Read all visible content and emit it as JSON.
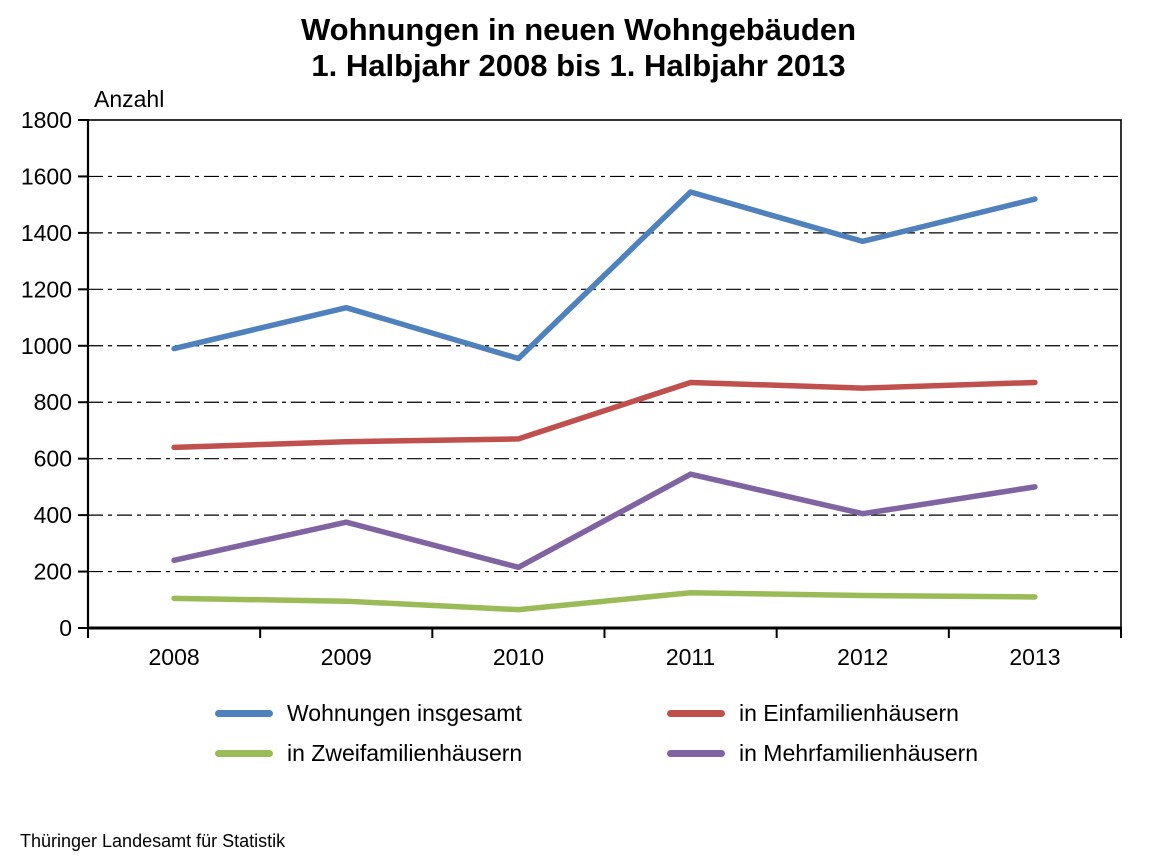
{
  "title": {
    "line1": "Wohnungen in neuen Wohngebäuden",
    "line2": "1. Halbjahr 2008 bis 1. Halbjahr 2013"
  },
  "source": "Thüringer Landesamt für Statistik",
  "chart_data": {
    "type": "line",
    "title": "Wohnungen in neuen Wohngebäuden 1. Halbjahr 2008 bis 1. Halbjahr 2013",
    "ylabel": "Anzahl",
    "xlabel": "",
    "categories": [
      "2008",
      "2009",
      "2010",
      "2011",
      "2012",
      "2013"
    ],
    "ylim": [
      0,
      1800
    ],
    "ytick_step": 200,
    "grid": "horizontal-dashed",
    "legend_position": "bottom",
    "series": [
      {
        "name": "Wohnungen insgesamt",
        "color": "#4F81BD",
        "values": [
          990,
          1135,
          955,
          1545,
          1370,
          1520
        ]
      },
      {
        "name": "in Einfamilienhäusern",
        "color": "#C0504D",
        "values": [
          640,
          660,
          670,
          870,
          850,
          870
        ]
      },
      {
        "name": "in Zweifamilienhäusern",
        "color": "#9BBB59",
        "values": [
          105,
          95,
          65,
          125,
          115,
          110
        ]
      },
      {
        "name": "in Mehrfamilienhäusern",
        "color": "#8064A2",
        "values": [
          240,
          375,
          215,
          545,
          405,
          500
        ]
      }
    ]
  }
}
